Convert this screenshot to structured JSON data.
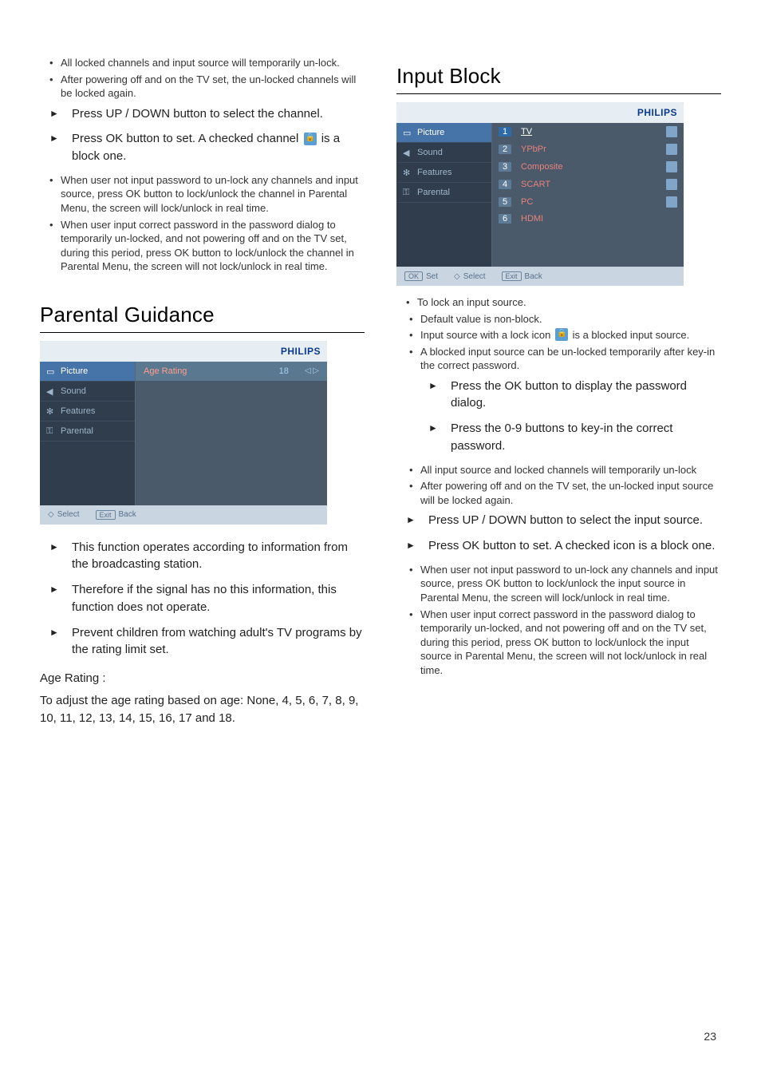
{
  "page_number": "23",
  "left": {
    "bullets_top": [
      "All locked channels and input source will temporarily un-lock.",
      "After powering off and on the TV set, the un-locked channels will be locked again."
    ],
    "arrows_top": [
      "Press UP / DOWN button to select the channel.",
      "Press OK button to set. A checked channel 🔒 is a block one."
    ],
    "arrow2_pre": "Press OK button to set. A checked channel",
    "arrow2_post": "is a block one.",
    "bullets_mid": [
      "When user not input password to un-lock any channels and input source, press OK button to lock/unlock the channel in Parental Menu, the screen will lock/unlock in real time.",
      "When user input correct password in the password dialog to temporarily un-locked, and not powering off and on the TV set, during this period, press OK button to lock/unlock the channel in Parental Menu, the screen will not lock/unlock in real time."
    ],
    "section_title": "Parental Guidance",
    "tvbox_parental": {
      "brand": "PHILIPS",
      "side": [
        "Picture",
        "Sound",
        "Features",
        "Parental"
      ],
      "age_label": "Age Rating",
      "age_value": "18",
      "age_arrows": "◁ ▷",
      "foot_select": "Select",
      "foot_exit": "Exit",
      "foot_back": "Back",
      "colors": {
        "bg": "#3a4a5a",
        "side_bg": "#2f3d4c",
        "main_bg": "#4a5a6a",
        "top_bg": "#e6eef4",
        "foot_bg": "#c9d6e2",
        "brand_color": "#0a3a8c",
        "label_color": "#ff9e8f",
        "value_color": "#a7d1f0"
      }
    },
    "arrows_bottom": [
      "This function operates according to information from the broadcasting station.",
      "Therefore if the signal has no this information, this function does not operate.",
      "Prevent children from watching adult's TV programs by the rating limit set."
    ],
    "age_heading": "Age Rating :",
    "age_body": "To adjust the age rating based on age: None, 4, 5, 6, 7, 8, 9, 10, 11, 12, 13, 14, 15, 16, 17 and 18."
  },
  "right": {
    "section_title": "Input Block",
    "tvbox_input": {
      "brand": "PHILIPS",
      "side": [
        "Picture",
        "Sound",
        "Features",
        "Parental"
      ],
      "rows": [
        {
          "n": "1",
          "label": "TV",
          "hl": true,
          "icon": true
        },
        {
          "n": "2",
          "label": "YPbPr",
          "hl": false,
          "icon": true
        },
        {
          "n": "3",
          "label": "Composite",
          "hl": false,
          "icon": true
        },
        {
          "n": "4",
          "label": "SCART",
          "hl": false,
          "icon": true
        },
        {
          "n": "5",
          "label": "PC",
          "hl": false,
          "icon": true
        },
        {
          "n": "6",
          "label": "HDMI",
          "hl": false,
          "icon": false
        }
      ],
      "foot_ok": "OK",
      "foot_set": "Set",
      "foot_select": "Select",
      "foot_exit": "Exit",
      "foot_back": "Back"
    },
    "bullets_top": [
      "To lock an input source."
    ],
    "sub_top": [
      "Default value is non-block."
    ],
    "sub_lock_pre": "Input source with a lock icon",
    "sub_lock_post": "is a blocked input source.",
    "sub_after": [
      "A blocked input source can be un-locked temporarily after key-in the correct password."
    ],
    "arrows_pw": [
      "Press the OK button to display the password dialog.",
      "Press the 0-9 buttons to key-in the correct password."
    ],
    "sub_after2": [
      "All input source and locked channels will temporarily un-lock",
      "After powering off and on the TV set, the un-locked input source will be locked again."
    ],
    "arrows_mid": [
      "Press UP / DOWN button to select the input source.",
      "Press OK button to set. A checked icon is a block one."
    ],
    "sub_bottom": [
      "When user not input password to un-lock any channels and input source, press OK button to lock/unlock the input source in Parental Menu, the screen will lock/unlock in real time.",
      "When user input correct password in the password dialog to temporarily un-locked, and not powering off and on the TV set, during this period, press OK button to lock/unlock the input source in Parental Menu, the screen will not lock/unlock in real time."
    ]
  }
}
